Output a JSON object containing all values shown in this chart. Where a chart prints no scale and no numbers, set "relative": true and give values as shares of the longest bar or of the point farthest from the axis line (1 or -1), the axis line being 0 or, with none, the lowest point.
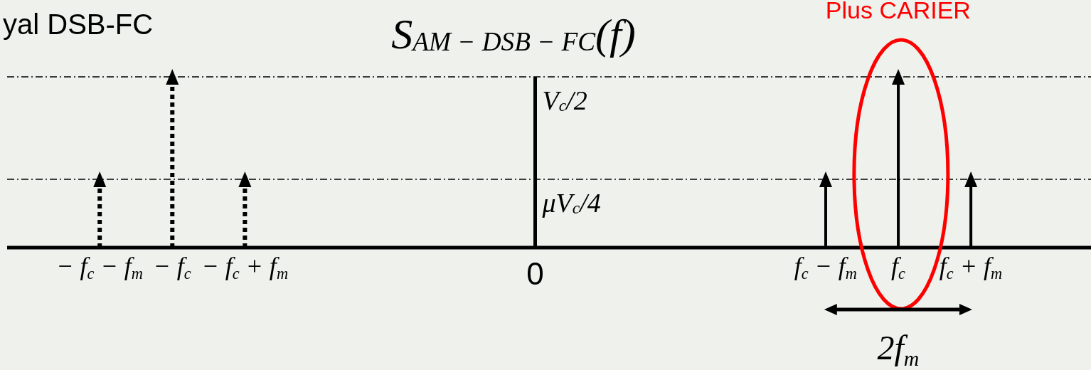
{
  "chart_data": {
    "type": "lollipop",
    "title": "S$_{AM − DSB − FC}$(f)",
    "categories": [
      "− f$_{c}$ − f$_{m}$",
      "− f$_{c}$",
      "− f$_{c}$ + f$_{m}$",
      null,
      null,
      null,
      "0",
      null,
      null,
      null,
      "f$_{c}$ − f$_{m}$",
      "f$_{c}$",
      "f$_{c}$ + f$_{m}$"
    ],
    "series": [
      {
        "color": "#000000",
        "line_style": "dotted",
        "values": [
          0.4,
          1,
          0.4,
          null,
          null,
          null,
          null,
          null,
          null,
          null,
          null,
          null,
          null
        ]
      },
      {
        "color": "#000000",
        "line_style": "solid",
        "values": [
          null,
          null,
          null,
          null,
          null,
          null,
          null,
          null,
          null,
          null,
          0.4,
          1,
          0.4
        ]
      }
    ],
    "relative": true,
    "marker": "triangle",
    "ref_lines": [
      {
        "axis": "x",
        "value": "0",
        "color": "#000000",
        "line_style": "solid"
      },
      {
        "axis": "y",
        "value": 1,
        "label": "V$_{c}$/2",
        "color": "#000000",
        "line_style": "dashed"
      },
      {
        "axis": "y",
        "value": 0.4,
        "label": "μV$_{c}$/4",
        "color": "#000000",
        "line_style": "dashed"
      }
    ],
    "annotations": [
      "yal DSB-FC",
      "Plus CARIER",
      "2f$_{m}$"
    ]
  }
}
